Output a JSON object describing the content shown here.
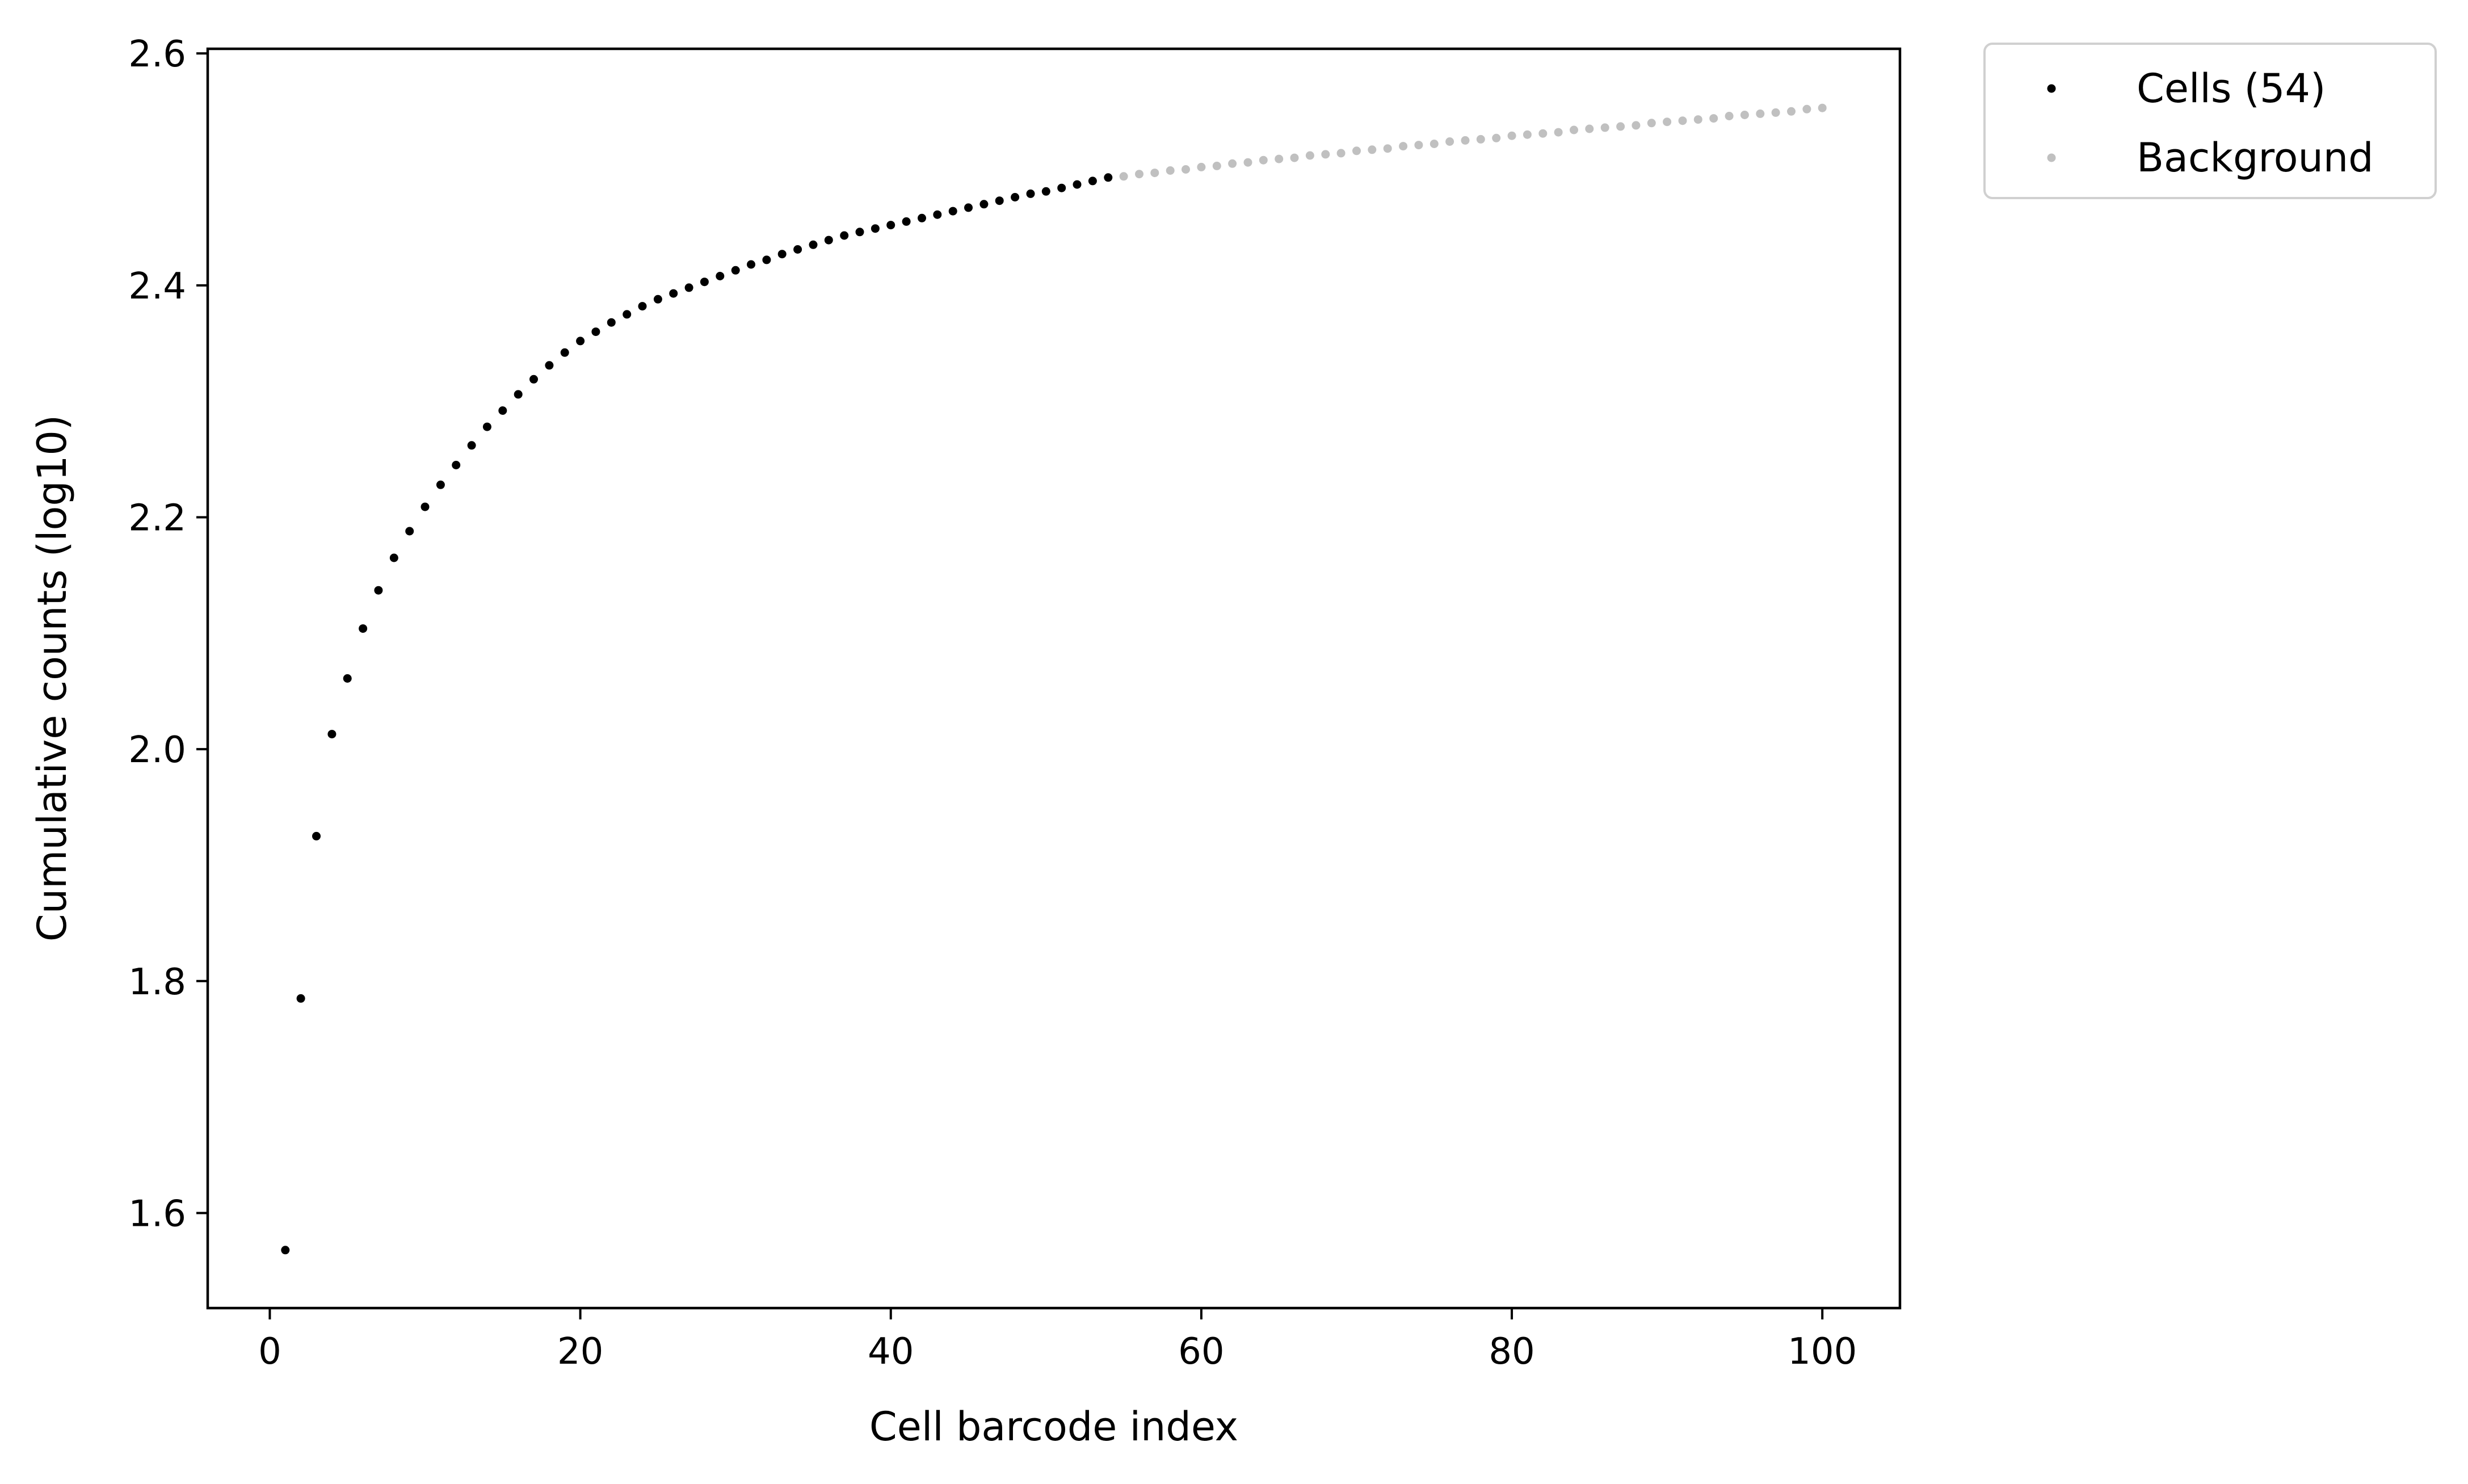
{
  "chart_data": {
    "type": "scatter",
    "xlabel": "Cell barcode index",
    "ylabel": "Cumulative counts (log10)",
    "xlim": [
      -4,
      105
    ],
    "ylim": [
      1.518,
      2.604
    ],
    "x_ticks": [
      0,
      20,
      40,
      60,
      80,
      100
    ],
    "x_tick_labels": [
      "0",
      "20",
      "40",
      "60",
      "80",
      "100"
    ],
    "y_ticks": [
      1.6,
      1.8,
      2.0,
      2.2,
      2.4,
      2.6
    ],
    "y_tick_labels": [
      "1.6",
      "1.8",
      "2.0",
      "2.2",
      "2.4",
      "2.6"
    ],
    "grid": false,
    "legend_position": "outside-top-right",
    "series": [
      {
        "name": "Cells (54)",
        "color": "#000000",
        "x": [
          1,
          2,
          3,
          4,
          5,
          6,
          7,
          8,
          9,
          10,
          11,
          12,
          13,
          14,
          15,
          16,
          17,
          18,
          19,
          20,
          21,
          22,
          23,
          24,
          25,
          26,
          27,
          28,
          29,
          30,
          31,
          32,
          33,
          34,
          35,
          36,
          37,
          38,
          39,
          40,
          41,
          42,
          43,
          44,
          45,
          46,
          47,
          48,
          49,
          50,
          51,
          52,
          53,
          54
        ],
        "y": [
          1.568,
          1.785,
          1.925,
          2.013,
          2.061,
          2.104,
          2.137,
          2.165,
          2.188,
          2.209,
          2.228,
          2.245,
          2.262,
          2.278,
          2.292,
          2.306,
          2.319,
          2.331,
          2.342,
          2.352,
          2.36,
          2.368,
          2.375,
          2.382,
          2.388,
          2.393,
          2.398,
          2.403,
          2.408,
          2.413,
          2.418,
          2.422,
          2.427,
          2.431,
          2.435,
          2.439,
          2.443,
          2.446,
          2.449,
          2.452,
          2.455,
          2.458,
          2.461,
          2.464,
          2.467,
          2.47,
          2.473,
          2.476,
          2.479,
          2.481,
          2.484,
          2.487,
          2.49,
          2.493
        ]
      },
      {
        "name": "Background",
        "color": "#c0c0c0",
        "x": [
          55,
          56,
          57,
          58,
          59,
          60,
          61,
          62,
          63,
          64,
          65,
          66,
          67,
          68,
          69,
          70,
          71,
          72,
          73,
          74,
          75,
          76,
          77,
          78,
          79,
          80,
          81,
          82,
          83,
          84,
          85,
          86,
          87,
          88,
          89,
          90,
          91,
          92,
          93,
          94,
          95,
          96,
          97,
          98,
          99,
          100
        ],
        "y": [
          2.494,
          2.496,
          2.497,
          2.499,
          2.5,
          2.502,
          2.503,
          2.505,
          2.506,
          2.508,
          2.509,
          2.51,
          2.512,
          2.513,
          2.514,
          2.516,
          2.517,
          2.518,
          2.52,
          2.521,
          2.522,
          2.524,
          2.525,
          2.526,
          2.527,
          2.529,
          2.53,
          2.531,
          2.532,
          2.534,
          2.535,
          2.536,
          2.537,
          2.538,
          2.54,
          2.541,
          2.542,
          2.543,
          2.544,
          2.546,
          2.547,
          2.548,
          2.549,
          2.55,
          2.552,
          2.553
        ]
      }
    ]
  }
}
